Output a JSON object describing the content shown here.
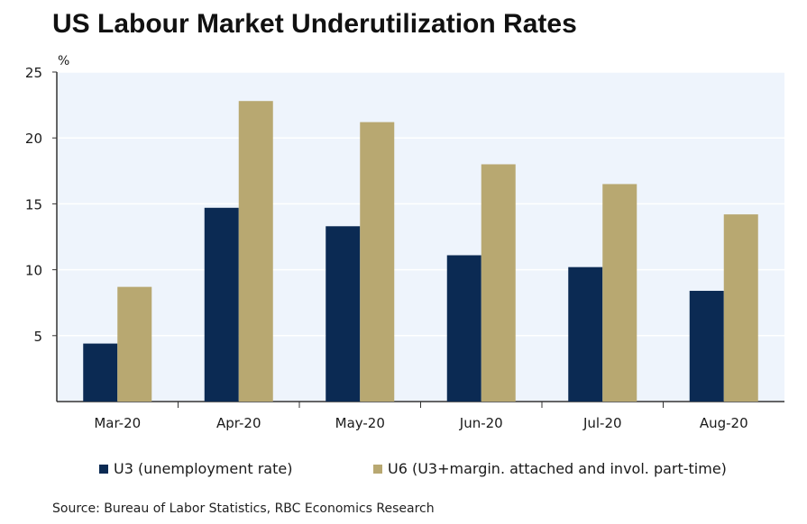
{
  "title": "US Labour Market Underutilization Rates",
  "source": "Source: Bureau of Labor Statistics, RBC Economics Research",
  "colors": {
    "u3": "#0b2a53",
    "u6": "#b8a871",
    "plot_bg": "#eef4fc",
    "grid": "#ffffff",
    "axis": "#333333"
  },
  "chart_data": {
    "type": "bar",
    "title": "US Labour Market Underutilization Rates",
    "ylabel": "%",
    "xlabel": "",
    "ylim": [
      0,
      25
    ],
    "yticks": [
      5,
      10,
      15,
      20,
      25
    ],
    "categories": [
      "Mar-20",
      "Apr-20",
      "May-20",
      "Jun-20",
      "Jul-20",
      "Aug-20"
    ],
    "series": [
      {
        "name": "U3 (unemployment rate)",
        "values": [
          4.4,
          14.7,
          13.3,
          11.1,
          10.2,
          8.4
        ]
      },
      {
        "name": "U6 (U3+margin. attached and invol. part-time)",
        "values": [
          8.7,
          22.8,
          21.2,
          18.0,
          16.5,
          14.2
        ]
      }
    ],
    "grid": true,
    "legend": "bottom"
  }
}
